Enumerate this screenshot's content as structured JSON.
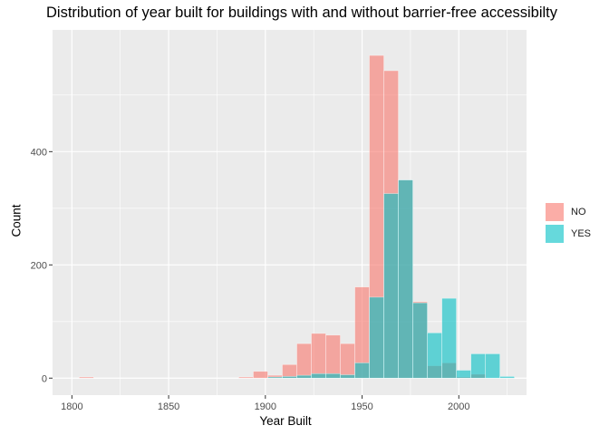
{
  "chart_data": {
    "type": "histogram",
    "title": "Distribution of year built for buildings with and without barrier-free accessibilty",
    "xlabel": "Year Built",
    "ylabel": "Count",
    "xlim": [
      1790,
      2035
    ],
    "ylim": [
      -30,
      615
    ],
    "x_ticks": [
      1800,
      1850,
      1900,
      1950,
      2000
    ],
    "y_ticks": [
      0,
      200,
      400
    ],
    "bin_width": 7.5,
    "grid": true,
    "legend_position": "right",
    "overlay": true,
    "series": [
      {
        "name": "NO",
        "color": "#F8766D",
        "bins": [
          {
            "x": 1807.5,
            "count": 2
          },
          {
            "x": 1890.0,
            "count": 2
          },
          {
            "x": 1897.5,
            "count": 12
          },
          {
            "x": 1905.0,
            "count": 5
          },
          {
            "x": 1912.5,
            "count": 24
          },
          {
            "x": 1920.0,
            "count": 61
          },
          {
            "x": 1927.5,
            "count": 79
          },
          {
            "x": 1935.0,
            "count": 76
          },
          {
            "x": 1942.5,
            "count": 61
          },
          {
            "x": 1950.0,
            "count": 161
          },
          {
            "x": 1957.5,
            "count": 570
          },
          {
            "x": 1965.0,
            "count": 543
          },
          {
            "x": 1972.5,
            "count": 350
          },
          {
            "x": 1980.0,
            "count": 135
          },
          {
            "x": 1987.5,
            "count": 22
          },
          {
            "x": 1995.0,
            "count": 27
          },
          {
            "x": 2002.5,
            "count": 2
          },
          {
            "x": 2010.0,
            "count": 7
          }
        ]
      },
      {
        "name": "YES",
        "color": "#00BFC4",
        "bins": [
          {
            "x": 1905.0,
            "count": 2
          },
          {
            "x": 1912.5,
            "count": 3
          },
          {
            "x": 1920.0,
            "count": 5
          },
          {
            "x": 1927.5,
            "count": 8
          },
          {
            "x": 1935.0,
            "count": 8
          },
          {
            "x": 1942.5,
            "count": 6
          },
          {
            "x": 1950.0,
            "count": 27
          },
          {
            "x": 1957.5,
            "count": 143
          },
          {
            "x": 1965.0,
            "count": 326
          },
          {
            "x": 1972.5,
            "count": 350
          },
          {
            "x": 1980.0,
            "count": 133
          },
          {
            "x": 1987.5,
            "count": 80
          },
          {
            "x": 1995.0,
            "count": 141
          },
          {
            "x": 2002.5,
            "count": 14
          },
          {
            "x": 2010.0,
            "count": 43
          },
          {
            "x": 2017.5,
            "count": 43
          },
          {
            "x": 2025.0,
            "count": 3
          }
        ]
      }
    ]
  }
}
